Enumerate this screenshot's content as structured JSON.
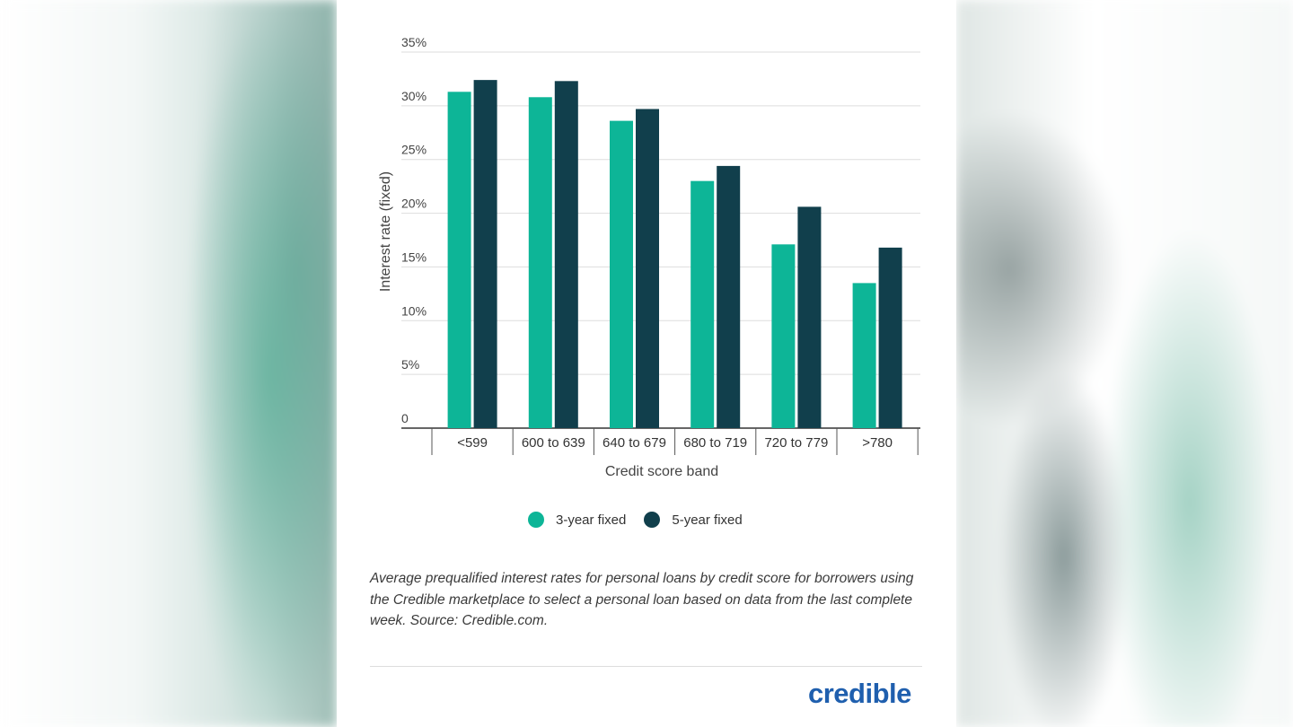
{
  "chart_data": {
    "type": "bar",
    "categories": [
      "<599",
      "600 to 639",
      "640 to 679",
      "680 to 719",
      "720 to 779",
      ">780"
    ],
    "series": [
      {
        "name": "3-year fixed",
        "color": "#0db597",
        "values": [
          31.3,
          30.8,
          28.6,
          23.0,
          17.1,
          13.5
        ]
      },
      {
        "name": "5-year fixed",
        "color": "#113f4c",
        "values": [
          32.4,
          32.3,
          29.7,
          24.4,
          20.6,
          16.8
        ]
      }
    ],
    "ylim": [
      0,
      35
    ],
    "yticks": [
      0,
      5,
      10,
      15,
      20,
      25,
      30,
      35
    ],
    "ytick_labels": [
      "0",
      "5%",
      "10%",
      "15%",
      "20%",
      "25%",
      "30%",
      "35%"
    ],
    "xlabel": "Credit score band",
    "ylabel": "Interest rate (fixed)",
    "grid": true,
    "legend_position": "bottom"
  },
  "caption": "Average prequalified interest rates for personal loans by credit score for borrowers using the Credible marketplace to select a personal loan based on data from the last complete week. Source: Credible.com.",
  "logo": {
    "text": "credible",
    "color": "#1f5fae"
  }
}
